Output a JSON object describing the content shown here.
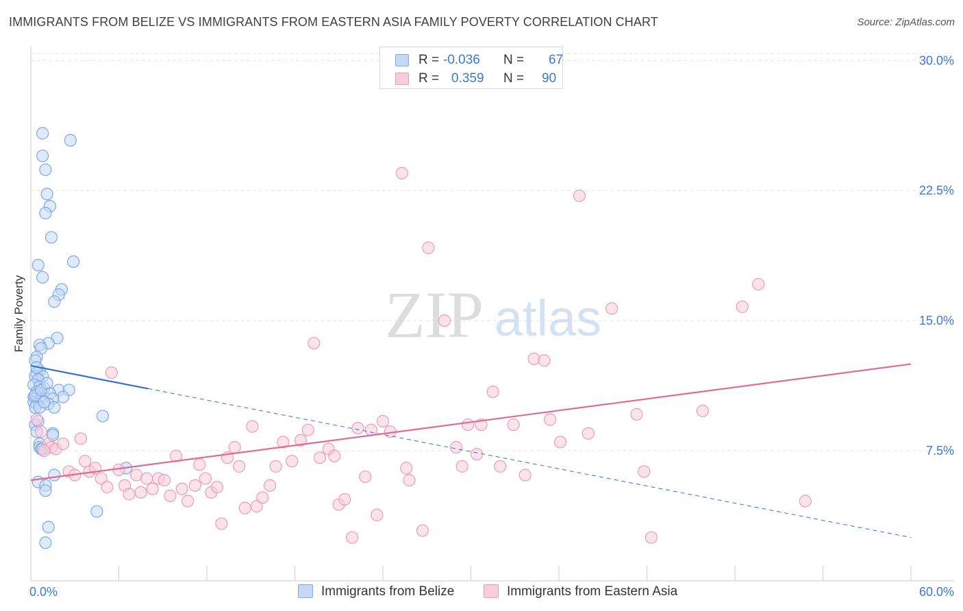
{
  "title": "IMMIGRANTS FROM BELIZE VS IMMIGRANTS FROM EASTERN ASIA FAMILY POVERTY CORRELATION CHART",
  "source": "Source: ZipAtlas.com",
  "watermark": {
    "zip": "ZIP",
    "atlas": "atlas"
  },
  "stats": [
    {
      "r_label": "R =",
      "r_value": "-0.036",
      "n_label": "N =",
      "n_value": "67"
    },
    {
      "r_label": "R =",
      "r_value": "0.359",
      "n_label": "N =",
      "n_value": "90"
    }
  ],
  "chart_data": {
    "type": "scatter",
    "title": "IMMIGRANTS FROM BELIZE VS IMMIGRANTS FROM EASTERN ASIA FAMILY POVERTY CORRELATION CHART",
    "xlabel": "",
    "ylabel": "Family Poverty",
    "xlim": [
      0,
      60
    ],
    "ylim": [
      0,
      30.8
    ],
    "x_tick_labels": [
      "0.0%",
      "60.0%"
    ],
    "y_ticks": [
      7.5,
      15.0,
      22.5,
      30.0
    ],
    "y_tick_labels": [
      "7.5%",
      "15.0%",
      "22.5%",
      "30.0%"
    ],
    "grid": true,
    "legend_position": "bottom",
    "series": [
      {
        "name": "Immigrants from Belize",
        "color": "#7aaae8",
        "fill": "#c5d9f5",
        "line_color": "#2f6fd6",
        "trend": {
          "x0": 0.0,
          "y0": 12.4,
          "x1": 60.0,
          "y1": 2.5,
          "solid_until_x": 8.0
        },
        "points": [
          [
            0.8,
            25.8
          ],
          [
            2.7,
            25.4
          ],
          [
            0.8,
            24.5
          ],
          [
            1.0,
            23.7
          ],
          [
            1.1,
            22.3
          ],
          [
            1.3,
            21.6
          ],
          [
            1.0,
            21.2
          ],
          [
            1.4,
            19.8
          ],
          [
            2.9,
            18.4
          ],
          [
            0.5,
            18.2
          ],
          [
            0.8,
            17.5
          ],
          [
            2.1,
            16.8
          ],
          [
            1.9,
            16.5
          ],
          [
            1.6,
            16.1
          ],
          [
            1.8,
            14.0
          ],
          [
            1.2,
            13.7
          ],
          [
            0.6,
            13.6
          ],
          [
            0.7,
            13.4
          ],
          [
            0.4,
            12.9
          ],
          [
            0.3,
            12.7
          ],
          [
            0.6,
            12.1
          ],
          [
            0.4,
            12.0
          ],
          [
            0.3,
            11.8
          ],
          [
            0.8,
            11.8
          ],
          [
            0.5,
            11.6
          ],
          [
            0.2,
            11.3
          ],
          [
            0.6,
            11.2
          ],
          [
            0.9,
            11.1
          ],
          [
            1.9,
            11.0
          ],
          [
            2.6,
            11.0
          ],
          [
            0.4,
            10.9
          ],
          [
            0.5,
            10.8
          ],
          [
            1.3,
            10.8
          ],
          [
            0.2,
            10.6
          ],
          [
            2.2,
            10.6
          ],
          [
            0.3,
            10.5
          ],
          [
            0.7,
            10.5
          ],
          [
            1.5,
            10.5
          ],
          [
            0.2,
            10.3
          ],
          [
            0.4,
            10.2
          ],
          [
            1.2,
            10.2
          ],
          [
            0.3,
            10.0
          ],
          [
            0.6,
            10.0
          ],
          [
            1.6,
            10.0
          ],
          [
            4.9,
            9.5
          ],
          [
            0.3,
            9.0
          ],
          [
            0.4,
            8.6
          ],
          [
            1.5,
            8.5
          ],
          [
            1.5,
            8.4
          ],
          [
            0.6,
            7.9
          ],
          [
            0.6,
            7.7
          ],
          [
            0.7,
            7.6
          ],
          [
            0.8,
            7.6
          ],
          [
            6.5,
            6.5
          ],
          [
            1.6,
            6.1
          ],
          [
            0.5,
            5.7
          ],
          [
            1.0,
            5.5
          ],
          [
            1.0,
            5.2
          ],
          [
            4.5,
            4.0
          ],
          [
            1.2,
            3.1
          ],
          [
            1.0,
            2.2
          ],
          [
            0.3,
            10.7
          ],
          [
            0.5,
            9.2
          ],
          [
            0.9,
            10.3
          ],
          [
            0.7,
            11.0
          ],
          [
            0.4,
            12.3
          ],
          [
            1.1,
            11.4
          ]
        ]
      },
      {
        "name": "Immigrants from Eastern Asia",
        "color": "#eb9cb8",
        "fill": "#f7ccdb",
        "line_color": "#e06b93",
        "trend": {
          "x0": 0.0,
          "y0": 5.8,
          "x1": 60.0,
          "y1": 12.5
        },
        "points": [
          [
            0.4,
            9.3
          ],
          [
            0.7,
            8.6
          ],
          [
            1.2,
            7.9
          ],
          [
            1.4,
            7.7
          ],
          [
            1.7,
            7.6
          ],
          [
            2.2,
            7.9
          ],
          [
            3.4,
            8.2
          ],
          [
            5.5,
            12.0
          ],
          [
            2.6,
            6.3
          ],
          [
            3.0,
            6.1
          ],
          [
            3.7,
            6.9
          ],
          [
            4.0,
            6.3
          ],
          [
            4.4,
            6.5
          ],
          [
            4.8,
            5.9
          ],
          [
            5.2,
            5.4
          ],
          [
            6.0,
            6.4
          ],
          [
            6.4,
            5.5
          ],
          [
            6.7,
            5.0
          ],
          [
            7.2,
            6.1
          ],
          [
            7.5,
            5.1
          ],
          [
            7.9,
            5.9
          ],
          [
            8.3,
            5.3
          ],
          [
            8.7,
            5.9
          ],
          [
            9.1,
            5.8
          ],
          [
            9.5,
            4.9
          ],
          [
            9.9,
            7.2
          ],
          [
            10.3,
            5.3
          ],
          [
            10.7,
            4.6
          ],
          [
            11.2,
            5.5
          ],
          [
            11.5,
            6.7
          ],
          [
            11.9,
            5.9
          ],
          [
            12.3,
            5.1
          ],
          [
            12.7,
            5.4
          ],
          [
            13.0,
            3.3
          ],
          [
            13.4,
            7.1
          ],
          [
            13.9,
            7.7
          ],
          [
            14.2,
            6.6
          ],
          [
            14.6,
            4.2
          ],
          [
            15.1,
            8.9
          ],
          [
            15.4,
            4.3
          ],
          [
            15.8,
            4.8
          ],
          [
            16.3,
            5.5
          ],
          [
            16.7,
            6.6
          ],
          [
            17.2,
            8.0
          ],
          [
            17.8,
            6.9
          ],
          [
            18.4,
            8.1
          ],
          [
            18.9,
            8.7
          ],
          [
            19.3,
            13.7
          ],
          [
            19.7,
            7.1
          ],
          [
            20.3,
            7.6
          ],
          [
            20.7,
            7.2
          ],
          [
            21.0,
            4.4
          ],
          [
            21.4,
            4.7
          ],
          [
            21.9,
            2.5
          ],
          [
            22.3,
            8.8
          ],
          [
            22.8,
            6.0
          ],
          [
            23.2,
            8.7
          ],
          [
            23.6,
            3.8
          ],
          [
            24.0,
            9.2
          ],
          [
            24.5,
            8.6
          ],
          [
            25.3,
            23.5
          ],
          [
            25.6,
            6.5
          ],
          [
            25.8,
            5.8
          ],
          [
            26.7,
            2.9
          ],
          [
            27.1,
            19.2
          ],
          [
            28.2,
            15.0
          ],
          [
            29.0,
            7.7
          ],
          [
            29.4,
            6.6
          ],
          [
            29.8,
            9.0
          ],
          [
            30.4,
            7.3
          ],
          [
            30.7,
            9.0
          ],
          [
            31.5,
            10.9
          ],
          [
            32.0,
            6.6
          ],
          [
            32.9,
            9.0
          ],
          [
            33.7,
            6.1
          ],
          [
            34.3,
            12.8
          ],
          [
            35.0,
            12.7
          ],
          [
            35.4,
            9.3
          ],
          [
            36.1,
            8.0
          ],
          [
            37.4,
            22.2
          ],
          [
            38.0,
            8.5
          ],
          [
            39.6,
            15.7
          ],
          [
            41.3,
            9.6
          ],
          [
            41.8,
            6.3
          ],
          [
            42.3,
            2.5
          ],
          [
            45.8,
            9.8
          ],
          [
            48.5,
            15.8
          ],
          [
            49.6,
            17.1
          ],
          [
            52.8,
            4.6
          ],
          [
            0.9,
            7.5
          ]
        ]
      }
    ]
  }
}
